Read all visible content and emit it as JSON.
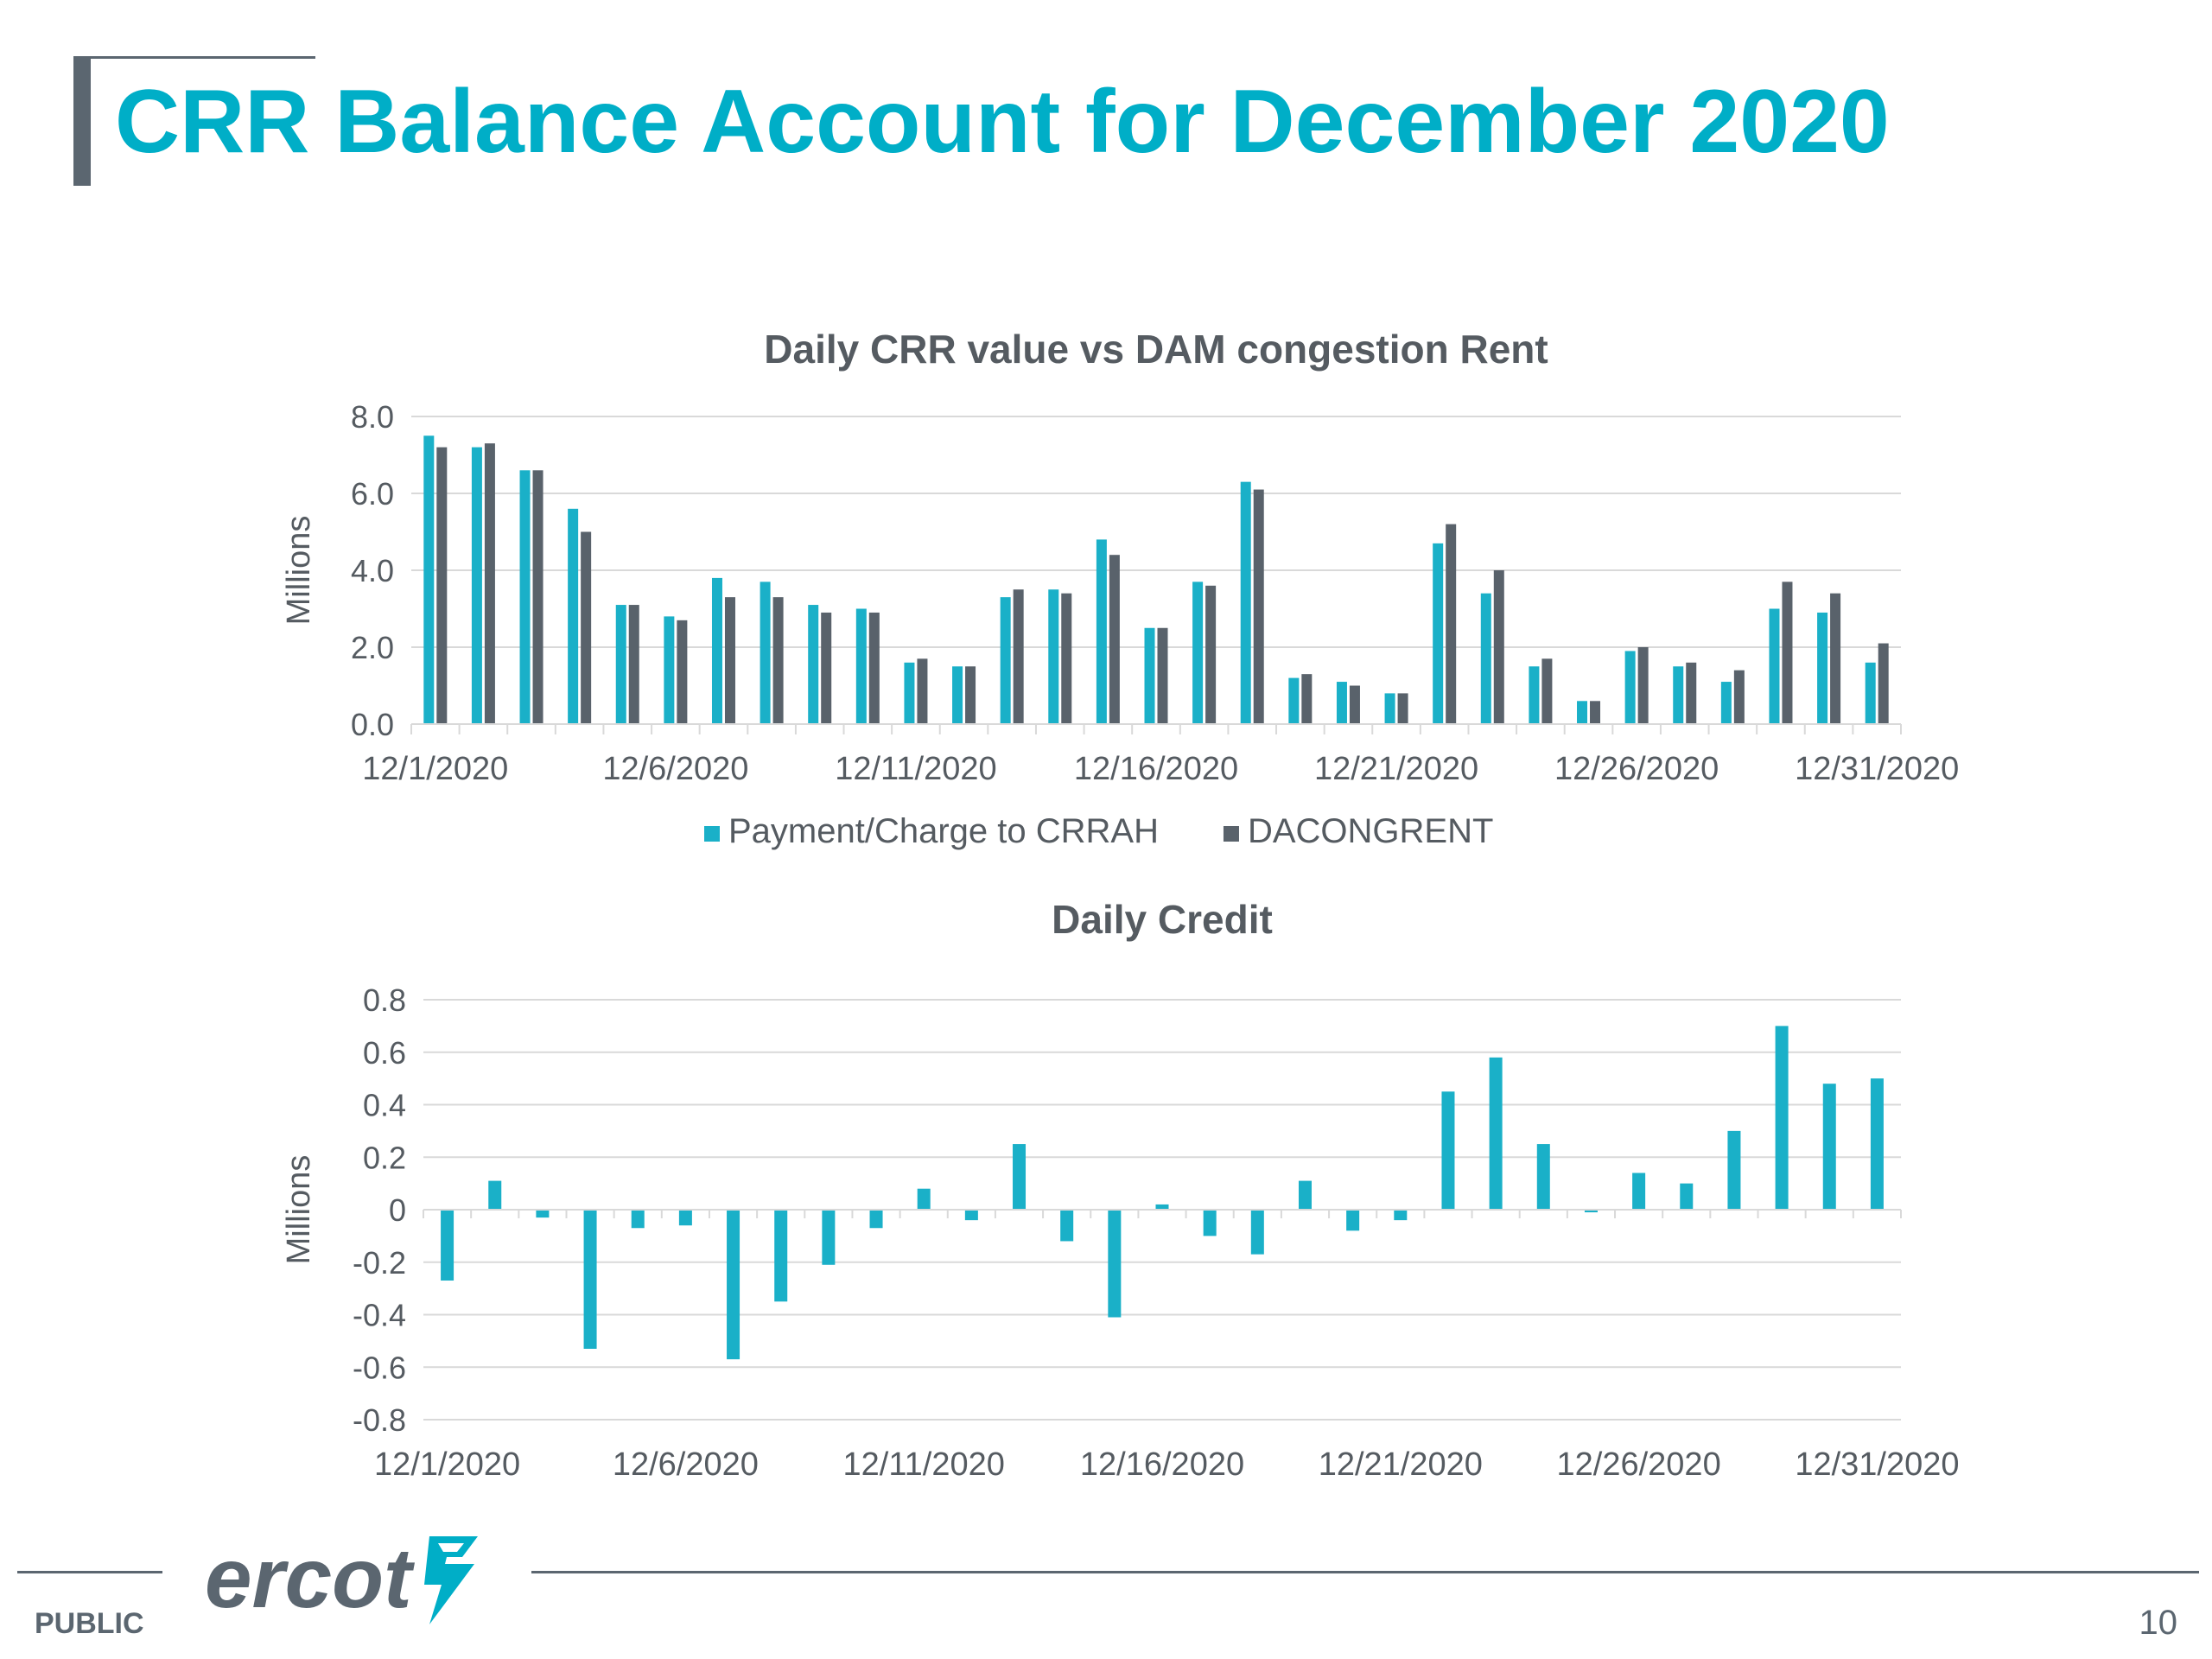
{
  "slide": {
    "title": "CRR Balance Account for December 2020",
    "classification": "PUBLIC",
    "page_number": "10",
    "logo_text": "ercot"
  },
  "colors": {
    "title": "#00aec7",
    "teal_series": "#1ab0c8",
    "gray_series": "#59626b",
    "axis_text": "#555b61",
    "chart_title": "#555b61",
    "grid": "#d9d9d9",
    "footer": "#5b6670"
  },
  "chart_data": [
    {
      "type": "bar",
      "title": "Daily CRR value vs DAM congestion Rent",
      "ylabel": "Millions",
      "xlabel": "",
      "ylim": [
        0,
        8
      ],
      "yticks": [
        "0.0",
        "2.0",
        "4.0",
        "6.0",
        "8.0"
      ],
      "ytick_values": [
        0,
        2,
        4,
        6,
        8
      ],
      "grid": true,
      "legend": "bottom",
      "categories": [
        "12/1/2020",
        "12/2/2020",
        "12/3/2020",
        "12/4/2020",
        "12/5/2020",
        "12/6/2020",
        "12/7/2020",
        "12/8/2020",
        "12/9/2020",
        "12/10/2020",
        "12/11/2020",
        "12/12/2020",
        "12/13/2020",
        "12/14/2020",
        "12/15/2020",
        "12/16/2020",
        "12/17/2020",
        "12/18/2020",
        "12/19/2020",
        "12/20/2020",
        "12/21/2020",
        "12/22/2020",
        "12/23/2020",
        "12/24/2020",
        "12/25/2020",
        "12/26/2020",
        "12/27/2020",
        "12/28/2020",
        "12/29/2020",
        "12/30/2020",
        "12/31/2020"
      ],
      "xtick_labels": [
        "12/1/2020",
        "12/6/2020",
        "12/11/2020",
        "12/16/2020",
        "12/21/2020",
        "12/26/2020",
        "12/31/2020"
      ],
      "xtick_indices": [
        0,
        5,
        10,
        15,
        20,
        25,
        30
      ],
      "series": [
        {
          "name": "Payment/Charge to CRRAH",
          "color": "#1ab0c8",
          "values": [
            7.5,
            7.2,
            6.6,
            5.6,
            3.1,
            2.8,
            3.8,
            3.7,
            3.1,
            3.0,
            1.6,
            1.5,
            3.3,
            3.5,
            4.8,
            2.5,
            3.7,
            6.3,
            1.2,
            1.1,
            0.8,
            4.7,
            3.4,
            1.5,
            0.6,
            1.9,
            1.5,
            1.1,
            3.0,
            2.9,
            1.6
          ]
        },
        {
          "name": "DACONGRENT",
          "color": "#59626b",
          "values": [
            7.2,
            7.3,
            6.6,
            5.0,
            3.1,
            2.7,
            3.3,
            3.3,
            2.9,
            2.9,
            1.7,
            1.5,
            3.5,
            3.4,
            4.4,
            2.5,
            3.6,
            6.1,
            1.3,
            1.0,
            0.8,
            5.2,
            4.0,
            1.7,
            0.6,
            2.0,
            1.6,
            1.4,
            3.7,
            3.4,
            2.1
          ]
        }
      ]
    },
    {
      "type": "bar",
      "title": "Daily Credit",
      "ylabel": "Millions",
      "xlabel": "",
      "ylim": [
        -0.8,
        0.8
      ],
      "yticks": [
        "-0.8",
        "-0.6",
        "-0.4",
        "-0.2",
        "0",
        "0.2",
        "0.4",
        "0.6",
        "0.8"
      ],
      "ytick_values": [
        -0.8,
        -0.6,
        -0.4,
        -0.2,
        0,
        0.2,
        0.4,
        0.6,
        0.8
      ],
      "grid": true,
      "categories": [
        "12/1/2020",
        "12/2/2020",
        "12/3/2020",
        "12/4/2020",
        "12/5/2020",
        "12/6/2020",
        "12/7/2020",
        "12/8/2020",
        "12/9/2020",
        "12/10/2020",
        "12/11/2020",
        "12/12/2020",
        "12/13/2020",
        "12/14/2020",
        "12/15/2020",
        "12/16/2020",
        "12/17/2020",
        "12/18/2020",
        "12/19/2020",
        "12/20/2020",
        "12/21/2020",
        "12/22/2020",
        "12/23/2020",
        "12/24/2020",
        "12/25/2020",
        "12/26/2020",
        "12/27/2020",
        "12/28/2020",
        "12/29/2020",
        "12/30/2020",
        "12/31/2020"
      ],
      "xtick_labels": [
        "12/1/2020",
        "12/6/2020",
        "12/11/2020",
        "12/16/2020",
        "12/21/2020",
        "12/26/2020",
        "12/31/2020"
      ],
      "xtick_indices": [
        0,
        5,
        10,
        15,
        20,
        25,
        30
      ],
      "series": [
        {
          "color": "#1ab0c8",
          "values": [
            -0.27,
            0.11,
            -0.03,
            -0.53,
            -0.07,
            -0.06,
            -0.57,
            -0.35,
            -0.21,
            -0.07,
            0.08,
            -0.04,
            0.25,
            -0.12,
            -0.41,
            0.02,
            -0.1,
            -0.17,
            0.11,
            -0.08,
            -0.04,
            0.45,
            0.58,
            0.25,
            -0.01,
            0.14,
            0.1,
            0.3,
            0.7,
            0.48,
            0.5
          ]
        }
      ]
    }
  ]
}
